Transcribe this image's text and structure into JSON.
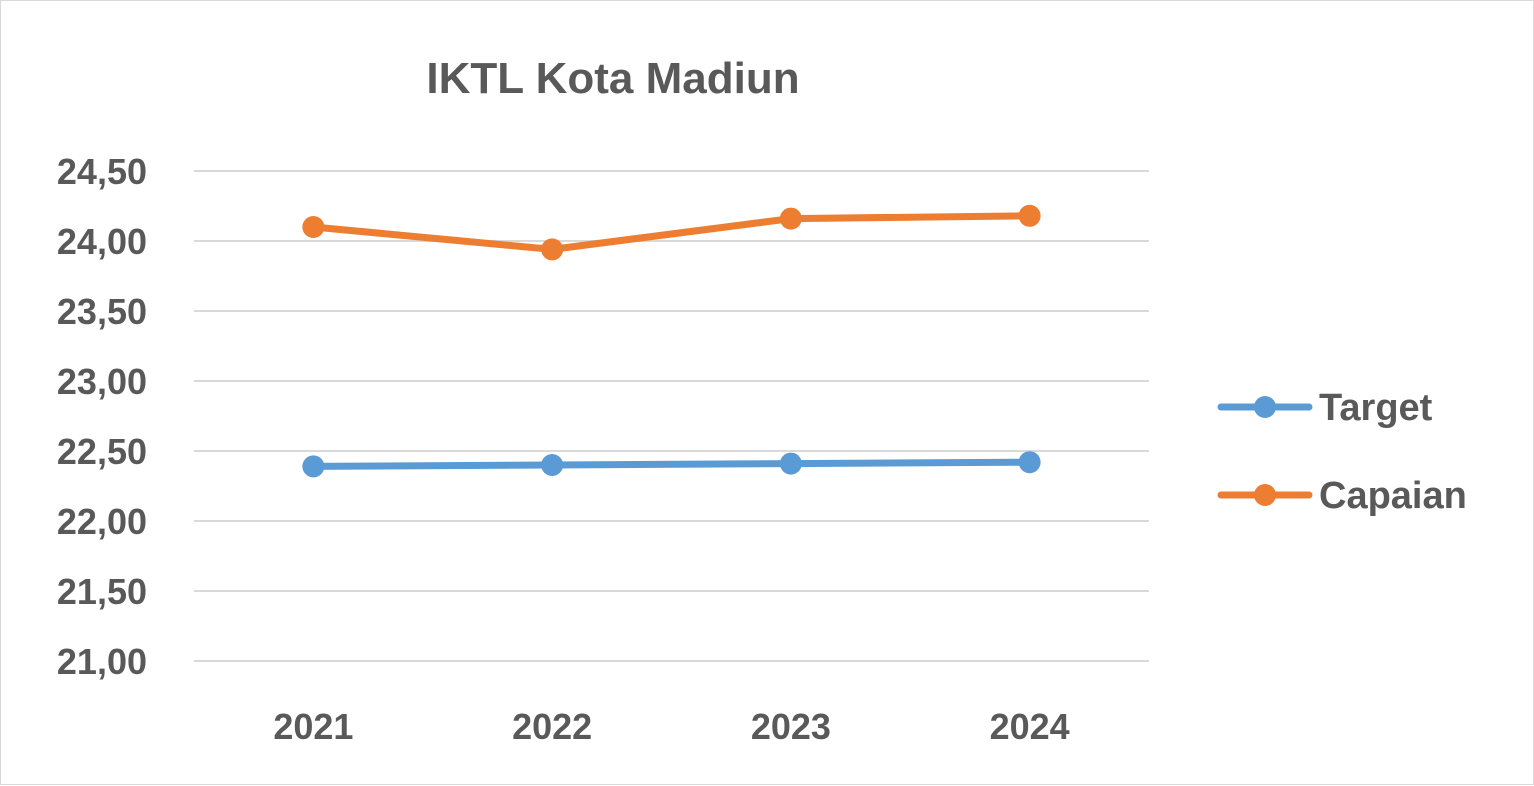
{
  "chart_data": {
    "type": "line",
    "title": "IKTL Kota Madiun",
    "categories": [
      "2021",
      "2022",
      "2023",
      "2024"
    ],
    "y_tick_labels": [
      "21,00",
      "21,50",
      "22,00",
      "22,50",
      "23,00",
      "23,50",
      "24,00",
      "24,50"
    ],
    "ylim": [
      21.0,
      24.5
    ],
    "y_tick_step": 0.5,
    "grid": true,
    "legend_position": "right",
    "series": [
      {
        "name": "Target",
        "color": "#5b9bd5",
        "values": [
          22.39,
          22.4,
          22.41,
          22.42
        ]
      },
      {
        "name": "Capaian",
        "color": "#ed7d31",
        "values": [
          24.1,
          23.94,
          24.16,
          24.18
        ]
      }
    ]
  }
}
